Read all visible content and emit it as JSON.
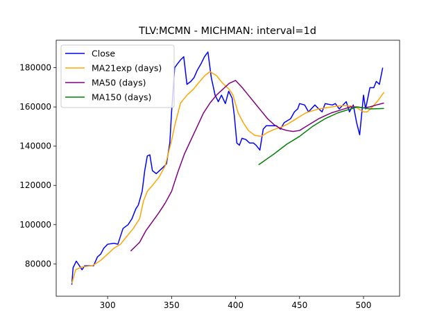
{
  "chart_data": {
    "type": "line",
    "title": "TLV:MCMN - MICHMAN: interval=1d",
    "xlim": [
      259.8,
      528.2
    ],
    "xticks": [
      300,
      350,
      400,
      450,
      500
    ],
    "ylim": [
      63500,
      194000
    ],
    "yticks": [
      80000,
      100000,
      120000,
      140000,
      160000,
      180000
    ],
    "legend": "upper left",
    "grid": false,
    "series": [
      {
        "name": "Close",
        "color": "#0000ff",
        "x": [
          272,
          273,
          275.5,
          278,
          280,
          282,
          289,
          292,
          294.6,
          297,
          300,
          305,
          308,
          312,
          316,
          319,
          322,
          324,
          327,
          329,
          331,
          333,
          335,
          338,
          340.5,
          343,
          346,
          348.6,
          350,
          352.4,
          354.6,
          357,
          359.5,
          362,
          365,
          367.6,
          370,
          373,
          375.7,
          378.4,
          381,
          384,
          386.5,
          389,
          392,
          394.6,
          397.3,
          399,
          401,
          403,
          405,
          408,
          411,
          414,
          416,
          419,
          421.6,
          424,
          430,
          432,
          435,
          438,
          443,
          446,
          448.6,
          450,
          454,
          457,
          462,
          465,
          467.6,
          470,
          475.7,
          478,
          481,
          486.5,
          489,
          492,
          494.6,
          497,
          500,
          501.6,
          505,
          508,
          510,
          512.4,
          515
        ],
        "values": [
          69400,
          78000,
          81400,
          79000,
          77000,
          79000,
          79000,
          83500,
          85000,
          88000,
          90000,
          90500,
          90000,
          98000,
          100000,
          103000,
          108000,
          110000,
          117000,
          127500,
          135000,
          135600,
          127500,
          126000,
          127500,
          129000,
          131000,
          141600,
          157500,
          180000,
          182000,
          184000,
          185600,
          171500,
          173000,
          175000,
          178600,
          182000,
          185600,
          188000,
          175000,
          166000,
          162700,
          166000,
          161700,
          168000,
          164500,
          155700,
          141600,
          140500,
          144000,
          143400,
          141600,
          141600,
          140500,
          138000,
          148700,
          150400,
          150400,
          150400,
          148700,
          152000,
          154000,
          157500,
          159000,
          161700,
          161000,
          157500,
          161000,
          159000,
          157500,
          161700,
          161000,
          161700,
          159000,
          162700,
          157500,
          161000,
          152000,
          145800,
          166000,
          159000,
          169800,
          169800,
          173000,
          171500,
          180000
        ]
      },
      {
        "name": "MA21exp (days)",
        "color": "#ffa500",
        "x": [
          272,
          275,
          280,
          288,
          295,
          300,
          305,
          310,
          315,
          320,
          325,
          328,
          331,
          335,
          340,
          345,
          350,
          353,
          357,
          362,
          367,
          372,
          376,
          380,
          385,
          390,
          395,
          398,
          402,
          406,
          410,
          415,
          420,
          425,
          430,
          435,
          440,
          445,
          450,
          455,
          460,
          465,
          470,
          475,
          480,
          485,
          490,
          495,
          500,
          503,
          507,
          511,
          516
        ],
        "values": [
          70000,
          77000,
          78500,
          79000,
          82000,
          85000,
          88000,
          90000,
          94000,
          98000,
          103000,
          112000,
          117000,
          120000,
          124000,
          130000,
          143000,
          152000,
          162000,
          166000,
          169000,
          173000,
          176000,
          178000,
          176000,
          172000,
          169000,
          166000,
          157000,
          152000,
          148000,
          145500,
          145000,
          147000,
          148500,
          149500,
          151000,
          153000,
          155000,
          157000,
          158000,
          159000,
          159500,
          160000,
          160500,
          160700,
          160500,
          159500,
          157500,
          157500,
          160000,
          163000,
          167500
        ]
      },
      {
        "name": "MA50 (days)",
        "color": "#800080",
        "x": [
          318,
          325,
          330,
          340,
          345,
          350,
          355,
          360,
          365,
          370,
          375,
          380,
          385,
          390,
          395,
          400,
          405,
          410,
          415,
          420,
          425,
          430,
          435,
          440,
          445,
          450,
          455,
          460,
          465,
          470,
          475,
          480,
          485,
          490,
          495,
          500,
          505,
          510,
          516
        ],
        "values": [
          86500,
          91000,
          97000,
          106000,
          111000,
          117000,
          127000,
          136000,
          143000,
          150000,
          157000,
          162000,
          166000,
          169000,
          172000,
          173500,
          170000,
          166000,
          162000,
          158000,
          154000,
          151000,
          149000,
          148000,
          147500,
          148000,
          150000,
          152000,
          154000,
          155500,
          157000,
          158000,
          159000,
          160000,
          160000,
          159500,
          160000,
          161000,
          162000
        ]
      },
      {
        "name": "MA150 (days)",
        "color": "#008000",
        "x": [
          418,
          430,
          440,
          450,
          460,
          470,
          480,
          490,
          495,
          500,
          505,
          516
        ],
        "values": [
          130500,
          136000,
          141000,
          145000,
          150000,
          154000,
          157000,
          159000,
          160000,
          159500,
          159000,
          159200
        ]
      }
    ]
  }
}
